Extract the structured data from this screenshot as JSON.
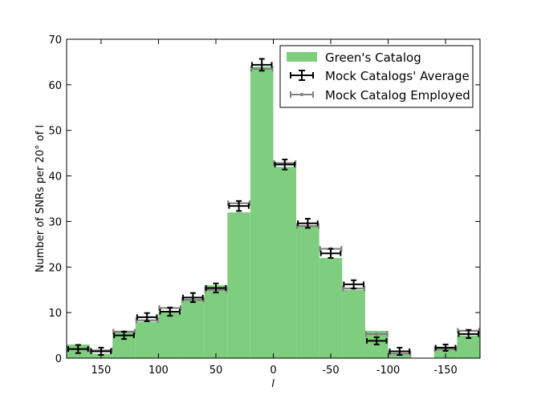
{
  "chart_data": {
    "type": "bar",
    "xlabel": "l",
    "ylabel": "Number of SNRs per 20° of l",
    "xlim": [
      180,
      -180
    ],
    "ylim": [
      0,
      70
    ],
    "bin_width": 20,
    "grid": false,
    "legend_placement": "top-right",
    "x_ticks": [
      150,
      100,
      50,
      0,
      -50,
      -100,
      -150
    ],
    "x_tick_labels": [
      "150",
      "100",
      "50",
      "0",
      "-50",
      "-100",
      "-150"
    ],
    "y_ticks": [
      0,
      10,
      20,
      30,
      40,
      50,
      60,
      70
    ],
    "y_tick_labels": [
      "0",
      "10",
      "20",
      "30",
      "40",
      "50",
      "60",
      "70"
    ],
    "legend": {
      "green": "Green's Catalog",
      "mock_avg": "Mock Catalogs' Average",
      "mock_emp": "Mock Catalog Employed"
    },
    "colors": {
      "green": "#7fcd7f",
      "mock_avg": "#000000",
      "mock_emp": "#808080"
    },
    "bins_center": [
      170,
      150,
      130,
      110,
      90,
      70,
      50,
      30,
      10,
      -10,
      -30,
      -50,
      -70,
      -90,
      -110,
      -130,
      -150,
      -170
    ],
    "series": [
      {
        "name": "Green's Catalog",
        "values": [
          3,
          1,
          6,
          8,
          10,
          13,
          16,
          32,
          64,
          42,
          29,
          22,
          15,
          6,
          1,
          0,
          2,
          5
        ]
      },
      {
        "name": "Mock Catalogs' Average",
        "values": [
          2.0,
          1.5,
          5.0,
          9.0,
          10.2,
          13.3,
          15.4,
          33.4,
          64.4,
          42.5,
          29.6,
          23.0,
          16.2,
          3.8,
          1.5,
          0.0,
          2.3,
          5.3
        ],
        "errors": [
          0.9,
          0.8,
          0.8,
          0.9,
          0.9,
          1.0,
          1.0,
          1.1,
          1.3,
          1.1,
          1.0,
          1.0,
          0.9,
          0.8,
          0.8,
          0.0,
          0.7,
          0.9
        ]
      },
      {
        "name": "Mock Catalog Employed",
        "values": [
          2.0,
          1.7,
          5.8,
          8.3,
          11.0,
          12.8,
          15.0,
          34.0,
          63.5,
          42.8,
          29.0,
          24.0,
          15.3,
          5.3,
          1.0,
          0.0,
          2.0,
          6.0
        ]
      }
    ]
  }
}
